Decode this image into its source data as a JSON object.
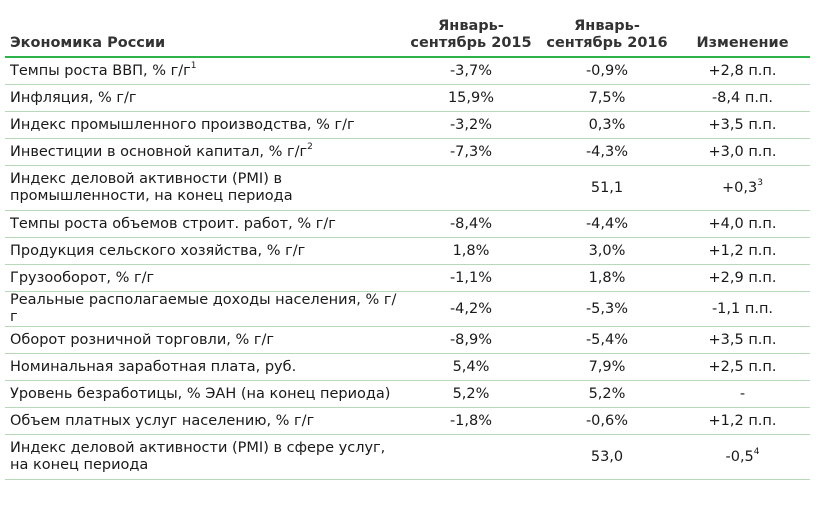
{
  "table": {
    "headers": {
      "label": "Экономика России",
      "v2015_line1": "Январь-",
      "v2015_line2": "сентябрь 2015",
      "v2016_line1": "Январь-",
      "v2016_line2": "сентябрь 2016",
      "change": "Изменение"
    },
    "rows": [
      {
        "label": "Темпы роста ВВП, % г/г",
        "sup": "1",
        "v2015": "-3,7%",
        "v2016": "-0,9%",
        "change": "+2,8 п.п.",
        "change_sup": ""
      },
      {
        "label": "Инфляция, % г/г",
        "sup": "",
        "v2015": "15,9%",
        "v2016": "7,5%",
        "change": "-8,4 п.п.",
        "change_sup": ""
      },
      {
        "label": "Индекс промышленного производства, % г/г",
        "sup": "",
        "v2015": "-3,2%",
        "v2016": "0,3%",
        "change": "+3,5 п.п.",
        "change_sup": ""
      },
      {
        "label": "Инвестиции в основной капитал, % г/г",
        "sup": "2",
        "v2015": "-7,3%",
        "v2016": "-4,3%",
        "change": "+3,0 п.п.",
        "change_sup": ""
      },
      {
        "label": "Индекс деловой активности (PMI) в промышленности, на конец периода",
        "sup": "",
        "v2015": "",
        "v2016": "51,1",
        "change": "+0,3",
        "change_sup": "3",
        "tall": true
      },
      {
        "label": "Темпы роста объемов строит. работ, % г/г",
        "sup": "",
        "v2015": "-8,4%",
        "v2016": "-4,4%",
        "change": "+4,0 п.п.",
        "change_sup": ""
      },
      {
        "label": "Продукция сельского хозяйства, % г/г",
        "sup": "",
        "v2015": "1,8%",
        "v2016": "3,0%",
        "change": "+1,2 п.п.",
        "change_sup": ""
      },
      {
        "label": "Грузооборот, % г/г",
        "sup": "",
        "v2015": "-1,1%",
        "v2016": "1,8%",
        "change": "+2,9 п.п.",
        "change_sup": ""
      },
      {
        "label": "Реальные располагаемые доходы населения, % г/г",
        "sup": "",
        "v2015": "-4,2%",
        "v2016": "-5,3%",
        "change": "-1,1 п.п.",
        "change_sup": ""
      },
      {
        "label": "Оборот розничной торговли, % г/г",
        "sup": "",
        "v2015": "-8,9%",
        "v2016": "-5,4%",
        "change": "+3,5 п.п.",
        "change_sup": ""
      },
      {
        "label": "Номинальная заработная плата, руб.",
        "sup": "",
        "v2015": "5,4%",
        "v2016": "7,9%",
        "change": "+2,5 п.п.",
        "change_sup": ""
      },
      {
        "label": "Уровень безработицы, % ЭАН (на конец периода)",
        "sup": "",
        "v2015": "5,2%",
        "v2016": "5,2%",
        "change": "-",
        "change_sup": ""
      },
      {
        "label": "Объем платных услуг населению, % г/г",
        "sup": "",
        "v2015": "-1,8%",
        "v2016": "-0,6%",
        "change": "+1,2 п.п.",
        "change_sup": ""
      },
      {
        "label": "Индекс деловой активности (PMI) в сфере услуг, на конец периода",
        "sup": "",
        "v2015": "",
        "v2016": "53,0",
        "change": "-0,5",
        "change_sup": "4",
        "tall": true
      }
    ]
  }
}
